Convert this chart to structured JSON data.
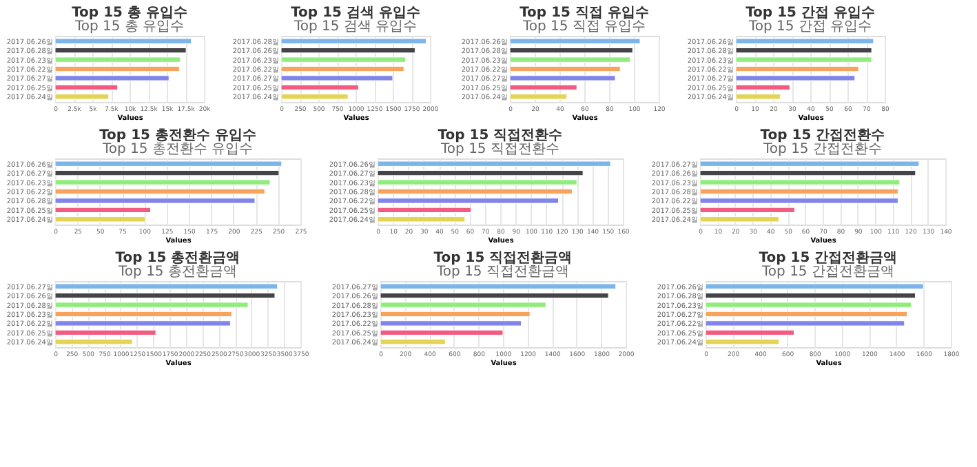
{
  "chart_data": [
    {
      "type": "bar",
      "orientation": "horizontal",
      "title": "Top 15 총 유입수",
      "subtitle": "Top 15 총 유입수",
      "xlabel": "Values",
      "categories": [
        "2017.06.26일",
        "2017.06.28일",
        "2017.06.23일",
        "2017.06.22일",
        "2017.06.27일",
        "2017.06.25일",
        "2017.06.24일"
      ],
      "values": [
        18300,
        17600,
        16800,
        16700,
        15300,
        8400,
        7200
      ],
      "colors": [
        "#7cb5ec",
        "#434348",
        "#90ed7d",
        "#f7a35c",
        "#8085e9",
        "#f15c80",
        "#e4d354"
      ],
      "xlim": [
        0,
        20000
      ],
      "xticks": [
        0,
        {
          "value": 2500,
          "label": "2.5k"
        },
        {
          "value": 5000,
          "label": "5k"
        },
        {
          "value": 7500,
          "label": "7.5k"
        },
        {
          "value": 10000,
          "label": "10k"
        },
        {
          "value": 12500,
          "label": "12.5k"
        },
        {
          "value": 15000,
          "label": "15k"
        },
        {
          "value": 17500,
          "label": "17.5k"
        },
        {
          "value": 20000,
          "label": "20k"
        }
      ],
      "grid": "x"
    },
    {
      "type": "bar",
      "orientation": "horizontal",
      "title": "Top 15 검색 유입수",
      "subtitle": "Top 15 검색 유입수",
      "xlabel": "Values",
      "categories": [
        "2017.06.28일",
        "2017.06.26일",
        "2017.06.23일",
        "2017.06.22일",
        "2017.06.27일",
        "2017.06.25일",
        "2017.06.24일"
      ],
      "values": [
        1950,
        1800,
        1670,
        1650,
        1500,
        1040,
        900
      ],
      "colors": [
        "#7cb5ec",
        "#434348",
        "#90ed7d",
        "#f7a35c",
        "#8085e9",
        "#f15c80",
        "#e4d354"
      ],
      "xlim": [
        0,
        2000
      ],
      "xticks": [
        0,
        250,
        500,
        750,
        1000,
        1250,
        1500,
        1750,
        2000
      ],
      "grid": "x"
    },
    {
      "type": "bar",
      "orientation": "horizontal",
      "title": "Top 15 직접 유입수",
      "subtitle": "Top 15 직접 유입수",
      "xlabel": "Values",
      "categories": [
        "2017.06.26일",
        "2017.06.28일",
        "2017.06.23일",
        "2017.06.22일",
        "2017.06.27일",
        "2017.06.25일",
        "2017.06.24일"
      ],
      "values": [
        105,
        99,
        97,
        89,
        85,
        54,
        46
      ],
      "colors": [
        "#7cb5ec",
        "#434348",
        "#90ed7d",
        "#f7a35c",
        "#8085e9",
        "#f15c80",
        "#e4d354"
      ],
      "xlim": [
        0,
        120
      ],
      "xticks": [
        0,
        20,
        40,
        60,
        80,
        100,
        120
      ],
      "grid": "x"
    },
    {
      "type": "bar",
      "orientation": "horizontal",
      "title": "Top 15 간접 유입수",
      "subtitle": "Top 15 간접 유입수",
      "xlabel": "Values",
      "categories": [
        "2017.06.26일",
        "2017.06.28일",
        "2017.06.23일",
        "2017.06.22일",
        "2017.06.27일",
        "2017.06.25일",
        "2017.06.24일"
      ],
      "values": [
        74,
        73,
        73,
        66,
        64,
        29,
        24
      ],
      "colors": [
        "#7cb5ec",
        "#434348",
        "#90ed7d",
        "#f7a35c",
        "#8085e9",
        "#f15c80",
        "#e4d354"
      ],
      "xlim": [
        0,
        80
      ],
      "xticks": [
        0,
        10,
        20,
        30,
        40,
        50,
        60,
        70,
        80
      ],
      "grid": "x"
    },
    {
      "type": "bar",
      "orientation": "horizontal",
      "title": "Top 15 총전환수 유입수",
      "subtitle": "Top 15 총전환수 유입수",
      "xlabel": "Values",
      "categories": [
        "2017.06.26일",
        "2017.06.27일",
        "2017.06.23일",
        "2017.06.22일",
        "2017.06.28일",
        "2017.06.25일",
        "2017.06.24일"
      ],
      "values": [
        254,
        251,
        241,
        235,
        224,
        107,
        101
      ],
      "colors": [
        "#7cb5ec",
        "#434348",
        "#90ed7d",
        "#f7a35c",
        "#8085e9",
        "#f15c80",
        "#e4d354"
      ],
      "xlim": [
        0,
        275
      ],
      "xticks": [
        0,
        25,
        50,
        75,
        100,
        125,
        150,
        175,
        200,
        225,
        250,
        275
      ],
      "grid": "x"
    },
    {
      "type": "bar",
      "orientation": "horizontal",
      "title": "Top 15 직접전환수",
      "subtitle": "Top 15 직접전환수",
      "xlabel": "Values",
      "categories": [
        "2017.06.26일",
        "2017.06.27일",
        "2017.06.23일",
        "2017.06.28일",
        "2017.06.22일",
        "2017.06.25일",
        "2017.06.24일"
      ],
      "values": [
        152,
        134,
        130,
        127,
        118,
        61,
        57
      ],
      "colors": [
        "#7cb5ec",
        "#434348",
        "#90ed7d",
        "#f7a35c",
        "#8085e9",
        "#f15c80",
        "#e4d354"
      ],
      "xlim": [
        0,
        160
      ],
      "xticks": [
        0,
        10,
        20,
        30,
        40,
        50,
        60,
        70,
        80,
        90,
        100,
        110,
        120,
        130,
        140,
        150,
        160
      ],
      "grid": "x"
    },
    {
      "type": "bar",
      "orientation": "horizontal",
      "title": "Top 15 간접전환수",
      "subtitle": "Top 15 간접전환수",
      "xlabel": "Values",
      "categories": [
        "2017.06.27일",
        "2017.06.26일",
        "2017.06.23일",
        "2017.06.28일",
        "2017.06.22일",
        "2017.06.25일",
        "2017.06.24일"
      ],
      "values": [
        125,
        123,
        114,
        113,
        113,
        54,
        45
      ],
      "colors": [
        "#7cb5ec",
        "#434348",
        "#90ed7d",
        "#f7a35c",
        "#8085e9",
        "#f15c80",
        "#e4d354"
      ],
      "xlim": [
        0,
        140
      ],
      "xticks": [
        0,
        10,
        20,
        30,
        40,
        50,
        60,
        70,
        80,
        90,
        100,
        110,
        120,
        130,
        140
      ],
      "grid": "x"
    },
    {
      "type": "bar",
      "orientation": "horizontal",
      "title": "Top 15 총전환금액",
      "subtitle": "Top 15 총전환금액",
      "xlabel": "Values",
      "categories": [
        "2017.06.27일",
        "2017.06.26일",
        "2017.06.28일",
        "2017.06.23일",
        "2017.06.22일",
        "2017.06.25일",
        "2017.06.24일"
      ],
      "values": [
        3400,
        3360,
        2950,
        2700,
        2680,
        1540,
        1180
      ],
      "colors": [
        "#7cb5ec",
        "#434348",
        "#90ed7d",
        "#f7a35c",
        "#8085e9",
        "#f15c80",
        "#e4d354"
      ],
      "xlim": [
        0,
        3750
      ],
      "xticks": [
        0,
        250,
        500,
        750,
        1000,
        1250,
        1500,
        1750,
        2000,
        2250,
        2500,
        2750,
        3000,
        3250,
        3500,
        3750
      ],
      "grid": "x"
    },
    {
      "type": "bar",
      "orientation": "horizontal",
      "title": "Top 15 직접전환금액",
      "subtitle": "Top 15 직접전환금액",
      "xlabel": "Values",
      "categories": [
        "2017.06.27일",
        "2017.06.26일",
        "2017.06.28일",
        "2017.06.23일",
        "2017.06.22일",
        "2017.06.25일",
        "2017.06.24일"
      ],
      "values": [
        1920,
        1860,
        1350,
        1220,
        1150,
        1000,
        530
      ],
      "colors": [
        "#7cb5ec",
        "#434348",
        "#90ed7d",
        "#f7a35c",
        "#8085e9",
        "#f15c80",
        "#e4d354"
      ],
      "xlim": [
        0,
        2000
      ],
      "xticks": [
        0,
        200,
        400,
        600,
        800,
        1000,
        1200,
        1400,
        1600,
        1800,
        2000
      ],
      "grid": "x"
    },
    {
      "type": "bar",
      "orientation": "horizontal",
      "title": "Top 15 간접전환금액",
      "subtitle": "Top 15 간접전환금액",
      "xlabel": "Values",
      "categories": [
        "2017.06.26일",
        "2017.06.28일",
        "2017.06.23일",
        "2017.06.27일",
        "2017.06.22일",
        "2017.06.25일",
        "2017.06.24일"
      ],
      "values": [
        1600,
        1540,
        1510,
        1480,
        1460,
        650,
        540
      ],
      "colors": [
        "#7cb5ec",
        "#434348",
        "#90ed7d",
        "#f7a35c",
        "#8085e9",
        "#f15c80",
        "#e4d354"
      ],
      "xlim": [
        0,
        1800
      ],
      "xticks": [
        0,
        200,
        400,
        600,
        800,
        1000,
        1200,
        1400,
        1600,
        1800
      ],
      "grid": "x"
    }
  ]
}
